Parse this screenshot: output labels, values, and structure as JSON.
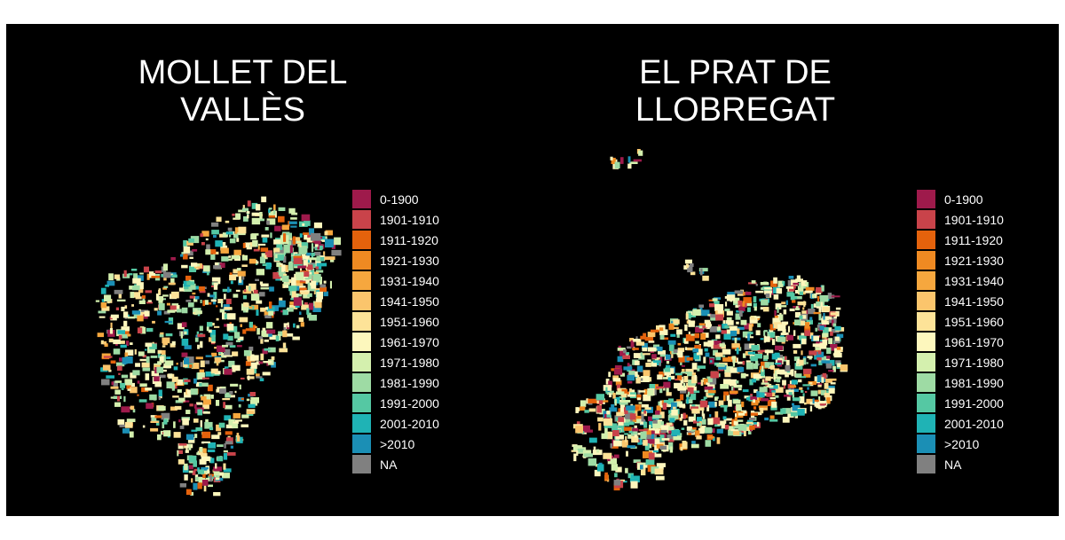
{
  "panels": [
    {
      "title_line1": "MOLLET DEL",
      "title_line2": "VALLÈS"
    },
    {
      "title_line1": "EL PRAT DE",
      "title_line2": "LLOBREGAT"
    }
  ],
  "legend": {
    "items": [
      {
        "label": "0-1900",
        "color": "#9e1a4b"
      },
      {
        "label": "1901-1910",
        "color": "#c9434a"
      },
      {
        "label": "1911-1920",
        "color": "#e4620c"
      },
      {
        "label": "1921-1930",
        "color": "#ef8a22"
      },
      {
        "label": "1931-1940",
        "color": "#f6a73e"
      },
      {
        "label": "1941-1950",
        "color": "#fbc56c"
      },
      {
        "label": "1951-1960",
        "color": "#fde398"
      },
      {
        "label": "1961-1970",
        "color": "#fdf7bd"
      },
      {
        "label": "1971-1980",
        "color": "#d4f0ae"
      },
      {
        "label": "1981-1990",
        "color": "#9edba4"
      },
      {
        "label": "1991-2000",
        "color": "#55c8a3"
      },
      {
        "label": "2001-2010",
        "color": "#1fb3b5"
      },
      {
        "label": ">2010",
        "color": "#1b8fb5"
      },
      {
        "label": "NA",
        "color": "#808080"
      }
    ]
  },
  "colors": {
    "background": "#000000",
    "text": "#ffffff"
  }
}
